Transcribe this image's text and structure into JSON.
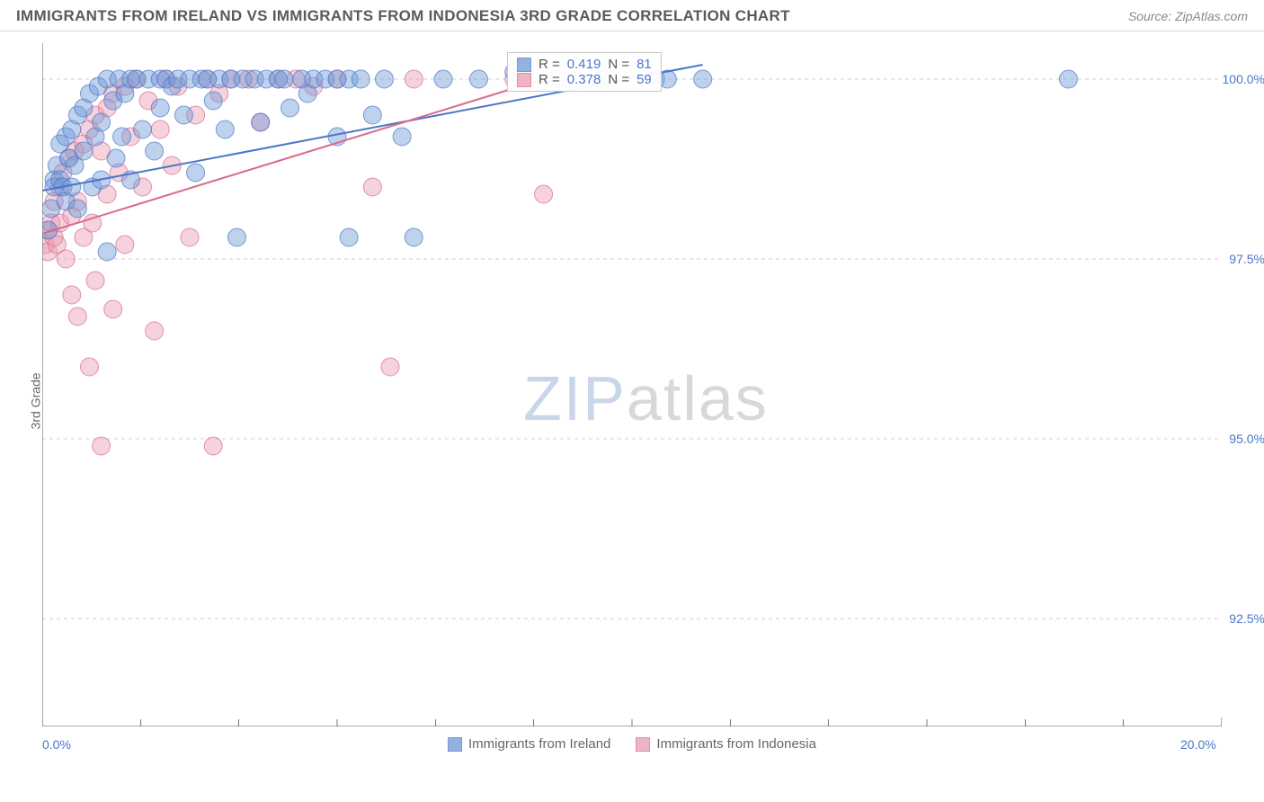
{
  "header": {
    "title": "IMMIGRANTS FROM IRELAND VS IMMIGRANTS FROM INDONESIA 3RD GRADE CORRELATION CHART",
    "source": "Source: ZipAtlas.com"
  },
  "chart": {
    "type": "scatter",
    "ylabel": "3rd Grade",
    "xlim": [
      0.0,
      20.0
    ],
    "ylim": [
      91.0,
      100.5
    ],
    "xticks": [
      0.0,
      20.0
    ],
    "xtick_labels": [
      "0.0%",
      "20.0%"
    ],
    "yticks": [
      92.5,
      95.0,
      97.5,
      100.0
    ],
    "ytick_labels": [
      "92.5%",
      "95.0%",
      "97.5%",
      "100.0%"
    ],
    "xtick_minor": [
      1.67,
      3.33,
      5.0,
      6.67,
      8.33,
      10.0,
      11.67,
      13.33,
      15.0,
      16.67,
      18.33
    ],
    "grid_color": "#cfcfcf",
    "axis_color": "#777777",
    "background_color": "#ffffff",
    "marker_radius": 10,
    "marker_opacity": 0.45,
    "line_width": 2,
    "watermark": {
      "zip": "ZIP",
      "atlas": "atlas"
    },
    "series": [
      {
        "name": "Immigrants from Ireland",
        "color_fill": "#6f99d8",
        "color_stroke": "#4a76c7",
        "r_value": "0.419",
        "n_value": "81",
        "trend": {
          "x1": 0.0,
          "y1": 98.45,
          "x2": 11.2,
          "y2": 100.2
        },
        "points": [
          [
            0.1,
            97.9
          ],
          [
            0.15,
            98.2
          ],
          [
            0.2,
            98.6
          ],
          [
            0.2,
            98.5
          ],
          [
            0.25,
            98.8
          ],
          [
            0.3,
            99.1
          ],
          [
            0.3,
            98.6
          ],
          [
            0.35,
            98.5
          ],
          [
            0.4,
            99.2
          ],
          [
            0.4,
            98.3
          ],
          [
            0.45,
            98.9
          ],
          [
            0.5,
            99.3
          ],
          [
            0.5,
            98.5
          ],
          [
            0.55,
            98.8
          ],
          [
            0.6,
            99.5
          ],
          [
            0.6,
            98.2
          ],
          [
            0.7,
            99.0
          ],
          [
            0.7,
            99.6
          ],
          [
            0.8,
            99.8
          ],
          [
            0.85,
            98.5
          ],
          [
            0.9,
            99.2
          ],
          [
            0.95,
            99.9
          ],
          [
            1.0,
            98.6
          ],
          [
            1.0,
            99.4
          ],
          [
            1.1,
            100.0
          ],
          [
            1.1,
            97.6
          ],
          [
            1.2,
            99.7
          ],
          [
            1.25,
            98.9
          ],
          [
            1.3,
            100.0
          ],
          [
            1.35,
            99.2
          ],
          [
            1.4,
            99.8
          ],
          [
            1.5,
            100.0
          ],
          [
            1.5,
            98.6
          ],
          [
            1.6,
            100.0
          ],
          [
            1.7,
            99.3
          ],
          [
            1.8,
            100.0
          ],
          [
            1.9,
            99.0
          ],
          [
            2.0,
            100.0
          ],
          [
            2.0,
            99.6
          ],
          [
            2.1,
            100.0
          ],
          [
            2.2,
            99.9
          ],
          [
            2.3,
            100.0
          ],
          [
            2.4,
            99.5
          ],
          [
            2.5,
            100.0
          ],
          [
            2.6,
            98.7
          ],
          [
            2.7,
            100.0
          ],
          [
            2.8,
            100.0
          ],
          [
            2.9,
            99.7
          ],
          [
            3.0,
            100.0
          ],
          [
            3.1,
            99.3
          ],
          [
            3.2,
            100.0
          ],
          [
            3.3,
            97.8
          ],
          [
            3.4,
            100.0
          ],
          [
            3.6,
            100.0
          ],
          [
            3.7,
            99.4
          ],
          [
            3.8,
            100.0
          ],
          [
            4.0,
            100.0
          ],
          [
            4.1,
            100.0
          ],
          [
            4.2,
            99.6
          ],
          [
            4.4,
            100.0
          ],
          [
            4.5,
            99.8
          ],
          [
            4.6,
            100.0
          ],
          [
            4.8,
            100.0
          ],
          [
            5.0,
            100.0
          ],
          [
            5.0,
            99.2
          ],
          [
            5.2,
            100.0
          ],
          [
            5.2,
            97.8
          ],
          [
            5.4,
            100.0
          ],
          [
            5.6,
            99.5
          ],
          [
            5.8,
            100.0
          ],
          [
            6.1,
            99.2
          ],
          [
            6.3,
            97.8
          ],
          [
            6.8,
            100.0
          ],
          [
            7.4,
            100.0
          ],
          [
            8.0,
            100.1
          ],
          [
            8.7,
            100.0
          ],
          [
            9.5,
            100.0
          ],
          [
            10.4,
            100.0
          ],
          [
            10.6,
            100.0
          ],
          [
            11.2,
            100.0
          ],
          [
            17.4,
            100.0
          ]
        ]
      },
      {
        "name": "Immigrants from Indonesia",
        "color_fill": "#e89bb2",
        "color_stroke": "#d96a8d",
        "r_value": "0.378",
        "n_value": "59",
        "trend": {
          "x1": 0.0,
          "y1": 97.85,
          "x2": 8.5,
          "y2": 100.0
        },
        "points": [
          [
            0.05,
            97.7
          ],
          [
            0.1,
            97.9
          ],
          [
            0.1,
            97.6
          ],
          [
            0.15,
            98.0
          ],
          [
            0.2,
            98.3
          ],
          [
            0.2,
            97.8
          ],
          [
            0.25,
            97.7
          ],
          [
            0.3,
            98.5
          ],
          [
            0.3,
            98.0
          ],
          [
            0.35,
            98.7
          ],
          [
            0.4,
            97.5
          ],
          [
            0.45,
            98.9
          ],
          [
            0.5,
            98.1
          ],
          [
            0.5,
            97.0
          ],
          [
            0.55,
            99.0
          ],
          [
            0.6,
            98.3
          ],
          [
            0.6,
            96.7
          ],
          [
            0.7,
            99.1
          ],
          [
            0.7,
            97.8
          ],
          [
            0.8,
            96.0
          ],
          [
            0.8,
            99.3
          ],
          [
            0.85,
            98.0
          ],
          [
            0.9,
            99.5
          ],
          [
            0.9,
            97.2
          ],
          [
            1.0,
            99.0
          ],
          [
            1.0,
            94.9
          ],
          [
            1.1,
            98.4
          ],
          [
            1.1,
            99.6
          ],
          [
            1.2,
            96.8
          ],
          [
            1.2,
            99.8
          ],
          [
            1.3,
            98.7
          ],
          [
            1.4,
            99.9
          ],
          [
            1.4,
            97.7
          ],
          [
            1.5,
            99.2
          ],
          [
            1.6,
            100.0
          ],
          [
            1.7,
            98.5
          ],
          [
            1.8,
            99.7
          ],
          [
            1.9,
            96.5
          ],
          [
            2.0,
            99.3
          ],
          [
            2.1,
            100.0
          ],
          [
            2.2,
            98.8
          ],
          [
            2.3,
            99.9
          ],
          [
            2.5,
            97.8
          ],
          [
            2.6,
            99.5
          ],
          [
            2.8,
            100.0
          ],
          [
            2.9,
            94.9
          ],
          [
            3.0,
            99.8
          ],
          [
            3.2,
            100.0
          ],
          [
            3.5,
            100.0
          ],
          [
            3.7,
            99.4
          ],
          [
            4.0,
            100.0
          ],
          [
            4.3,
            100.0
          ],
          [
            4.6,
            99.9
          ],
          [
            5.0,
            100.0
          ],
          [
            5.6,
            98.5
          ],
          [
            5.9,
            96.0
          ],
          [
            6.3,
            100.0
          ],
          [
            8.0,
            100.0
          ],
          [
            8.5,
            98.4
          ]
        ]
      }
    ],
    "legend_labels": {
      "r": "R =",
      "n": "N ="
    }
  }
}
